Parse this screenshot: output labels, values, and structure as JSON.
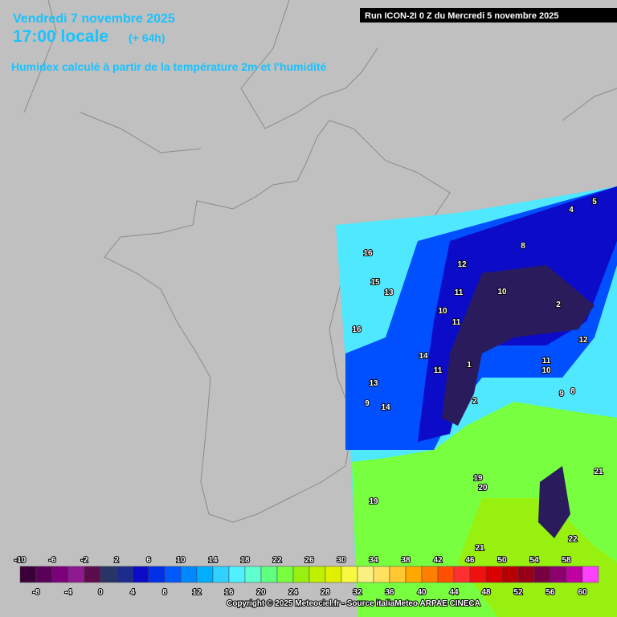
{
  "header": {
    "date": "Vendredi 7 novembre 2025",
    "time": "17:00 locale",
    "lead": "(+ 64h)",
    "subtitle": "Humidex calculé à partir de la température 2m et l'humidité",
    "run": "Run ICON-2I 0 Z du Mercredi 5 novembre 2025"
  },
  "scale": {
    "top_labels": [
      -10,
      -6,
      -2,
      2,
      6,
      10,
      14,
      18,
      22,
      26,
      30,
      34,
      38,
      42,
      46,
      50,
      54,
      58
    ],
    "bottom_labels": [
      -8,
      -4,
      0,
      4,
      8,
      12,
      16,
      20,
      24,
      28,
      32,
      36,
      40,
      44,
      48,
      52,
      56,
      60
    ],
    "colors": [
      "#3c0038",
      "#5a005a",
      "#7c007c",
      "#901890",
      "#5c0c4c",
      "#283466",
      "#1c2c8c",
      "#0c0cc8",
      "#0030e8",
      "#0058ff",
      "#0088ff",
      "#00b0ff",
      "#30d0ff",
      "#50f0ff",
      "#60ffd0",
      "#60ff80",
      "#78ff40",
      "#98f010",
      "#c0f000",
      "#e0f000",
      "#f8f840",
      "#f8f080",
      "#ffe060",
      "#ffc830",
      "#ffa800",
      "#ff8000",
      "#ff5000",
      "#ff3030",
      "#f01010",
      "#d80000",
      "#b80000",
      "#980018",
      "#780040",
      "#8c0070",
      "#c000a0",
      "#ff40ff"
    ]
  },
  "map": {
    "labels": [
      16,
      15,
      13,
      12,
      11,
      10,
      10,
      11,
      16,
      14,
      11,
      1,
      11,
      10,
      9,
      8,
      2,
      13,
      9,
      14,
      19,
      20,
      19,
      21,
      22,
      21,
      4,
      5,
      12,
      8,
      2
    ]
  },
  "footer": {
    "copyright": "Copyright © 2025 Meteociel.fr - Source italiaMeteo ARPAE CINECA"
  }
}
